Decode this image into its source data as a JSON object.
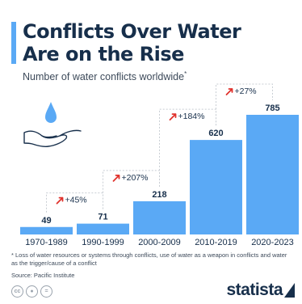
{
  "title_line1": "Conflicts Over Water",
  "title_line2": "Are on the Rise",
  "subtitle": "Number of water conflicts worldwide",
  "subtitle_mark": "*",
  "footnote": "* Loss of water resources or systems through conflicts, use of water as a weapon in conflicts and water as the trigger/cause of a conflict",
  "source": "Source: Pacific Institute",
  "brand": "statista",
  "license_icons": [
    "cc-icon",
    "by-icon",
    "nd-icon"
  ],
  "colors": {
    "accent": "#5aa9f5",
    "bar": "#5aa9f5",
    "arrow": "#e0322c",
    "text": "#172f4b",
    "bracket": "#c8cdd3"
  },
  "chart_data": {
    "type": "bar",
    "categories": [
      "1970-1989",
      "1990-1999",
      "2000-2009",
      "2010-2019",
      "2020-2023"
    ],
    "values": [
      49,
      71,
      218,
      620,
      785
    ],
    "changes": [
      "+45%",
      "+207%",
      "+184%",
      "+27%"
    ],
    "title": "Conflicts Over Water Are on the Rise",
    "xlabel": "",
    "ylabel": "",
    "ylim": [
      0,
      800
    ],
    "grid": false,
    "legend": "none"
  }
}
